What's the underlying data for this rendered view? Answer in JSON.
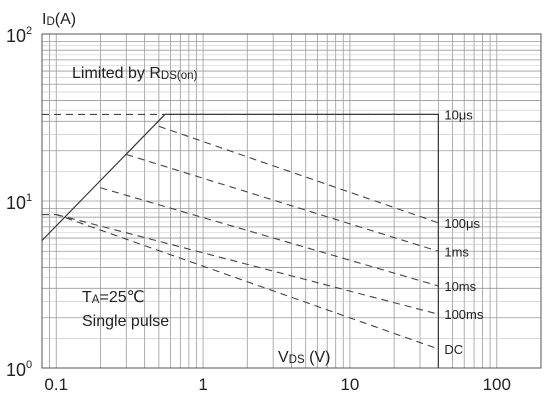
{
  "chart_data": {
    "type": "line",
    "title": "",
    "ylabel": {
      "main": "I",
      "sub": "D",
      "unit": "(A)"
    },
    "xlabel": {
      "main": "V",
      "sub": "DS",
      "unit": " (V)"
    },
    "x_scale": "log",
    "y_scale": "log",
    "xlim": [
      0.08,
      200
    ],
    "ylim": [
      1,
      100
    ],
    "x_ticks": [
      {
        "value": 0.1,
        "label": "0.1"
      },
      {
        "value": 1,
        "label": "1"
      },
      {
        "value": 10,
        "label": "10"
      },
      {
        "value": 100,
        "label": "100"
      }
    ],
    "y_ticks": [
      {
        "value": 1,
        "base": "10",
        "exp": "0"
      },
      {
        "value": 10,
        "base": "10",
        "exp": "1"
      },
      {
        "value": 100,
        "base": "10",
        "exp": "2"
      }
    ],
    "grid": true,
    "boundary": {
      "style": "solid",
      "points": [
        [
          0.08,
          5.8
        ],
        [
          0.55,
          33
        ],
        [
          40,
          33
        ],
        [
          40,
          1
        ]
      ]
    },
    "limits": [
      {
        "label": "10μs",
        "points": [
          [
            0.08,
            33
          ],
          [
            40,
            33
          ]
        ]
      },
      {
        "label": "100μs",
        "points": [
          [
            0.5,
            28
          ],
          [
            40,
            7.4
          ]
        ]
      },
      {
        "label": "1ms",
        "points": [
          [
            0.3,
            19
          ],
          [
            40,
            5
          ]
        ]
      },
      {
        "label": "10ms",
        "points": [
          [
            0.2,
            12
          ],
          [
            40,
            3.1
          ]
        ]
      },
      {
        "label": "100ms",
        "points": [
          [
            0.1,
            8.3
          ],
          [
            40,
            2.1
          ]
        ]
      },
      {
        "label": "DC",
        "points": [
          [
            0.08,
            8.3
          ],
          [
            0.1,
            8.3
          ],
          [
            40,
            1.3
          ]
        ]
      }
    ],
    "annotations": [
      {
        "lines": [
          {
            "main": "Limited by R",
            "sub": "DS(on)"
          }
        ]
      },
      {
        "lines": [
          {
            "main": "T",
            "sub": "A",
            "rest": "=25℃"
          },
          {
            "main": "Single pulse"
          }
        ]
      }
    ]
  }
}
